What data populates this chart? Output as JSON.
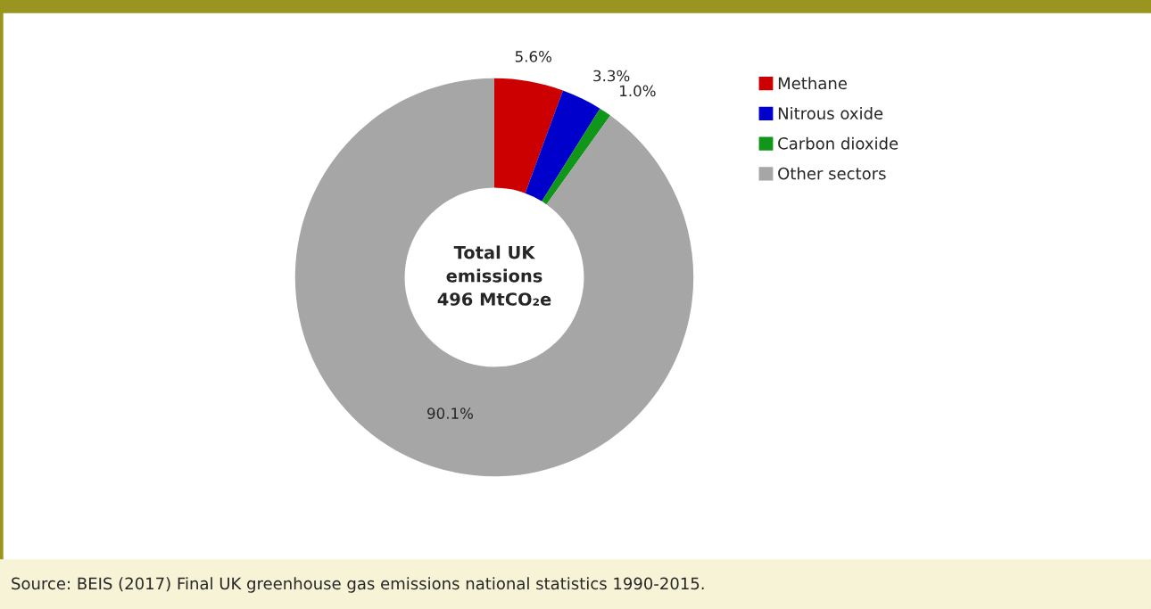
{
  "chart_data": {
    "type": "donut",
    "categories": [
      "Methane",
      "Nitrous oxide",
      "Carbon dioxide",
      "Other sectors"
    ],
    "values": [
      5.6,
      3.3,
      1.0,
      90.1
    ],
    "colors": [
      "#cc0000",
      "#0000cc",
      "#109618",
      "#a6a6a6"
    ],
    "value_labels": [
      "5.6%",
      "3.3%",
      "1.0%",
      "90.1%"
    ],
    "legend": "right",
    "annotations": [
      "Total UK\nemissions\n496 MtCO₂e",
      "Source: BEIS (2017) Final UK greenhouse gas emissions national statistics 1990-2015."
    ]
  }
}
